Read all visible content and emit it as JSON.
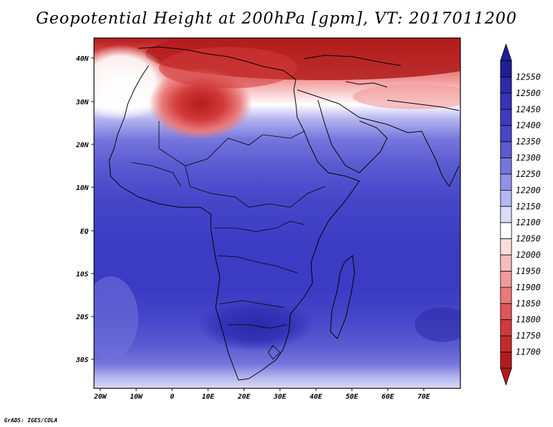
{
  "title": "Geopotential Height at 200hPa [gpm], VT: 2017011200",
  "credit": "GrADS: IGES/COLA",
  "axes": {
    "lon_ticks": [
      "20W",
      "10W",
      "0",
      "10E",
      "20E",
      "30E",
      "40E",
      "50E",
      "60E",
      "70E"
    ],
    "lat_ticks": [
      "40N",
      "30N",
      "20N",
      "10N",
      "EQ",
      "10S",
      "20S",
      "30S"
    ]
  },
  "colorbar": {
    "levels": [
      "12550",
      "12500",
      "12450",
      "12400",
      "12350",
      "12300",
      "12250",
      "12200",
      "12150",
      "12100",
      "12050",
      "12000",
      "11950",
      "11900",
      "11850",
      "11800",
      "11750",
      "11700"
    ],
    "colors": [
      "#201e95",
      "#2b2aa8",
      "#3533b8",
      "#3b3bc4",
      "#4646c9",
      "#5b5bd2",
      "#7575dc",
      "#9191e6",
      "#b6b6f0",
      "#dcdcf8",
      "#ffffff",
      "#fddcdc",
      "#f9bcbc",
      "#f29a9a",
      "#ea7979",
      "#df5656",
      "#d13a3a",
      "#c42a2a",
      "#b21b1b"
    ]
  },
  "chart_data": {
    "type": "heatmap",
    "title": "Geopotential Height at 200hPa [gpm], VT: 2017011200",
    "variable": "Geopotential Height",
    "level": "200hPa",
    "units": "gpm",
    "valid_time": "2017011200",
    "lon_range": [
      -22,
      80
    ],
    "lat_range": [
      -37,
      45
    ],
    "contour_levels": [
      11700,
      11750,
      11800,
      11850,
      11900,
      11950,
      12000,
      12050,
      12100,
      12150,
      12200,
      12250,
      12300,
      12350,
      12400,
      12450,
      12500,
      12550
    ],
    "approx_values_by_lat": [
      {
        "lat": 42,
        "value": 11750
      },
      {
        "lat": 35,
        "value": 11900
      },
      {
        "lat": 30,
        "value": 12000
      },
      {
        "lat": 26,
        "value": 12100
      },
      {
        "lat": 22,
        "value": 12250
      },
      {
        "lat": 15,
        "value": 12350
      },
      {
        "lat": 5,
        "value": 12400
      },
      {
        "lat": -10,
        "value": 12400
      },
      {
        "lat": -20,
        "value": 12450
      },
      {
        "lat": -30,
        "value": 12300
      },
      {
        "lat": -36,
        "value": 12150
      }
    ]
  }
}
